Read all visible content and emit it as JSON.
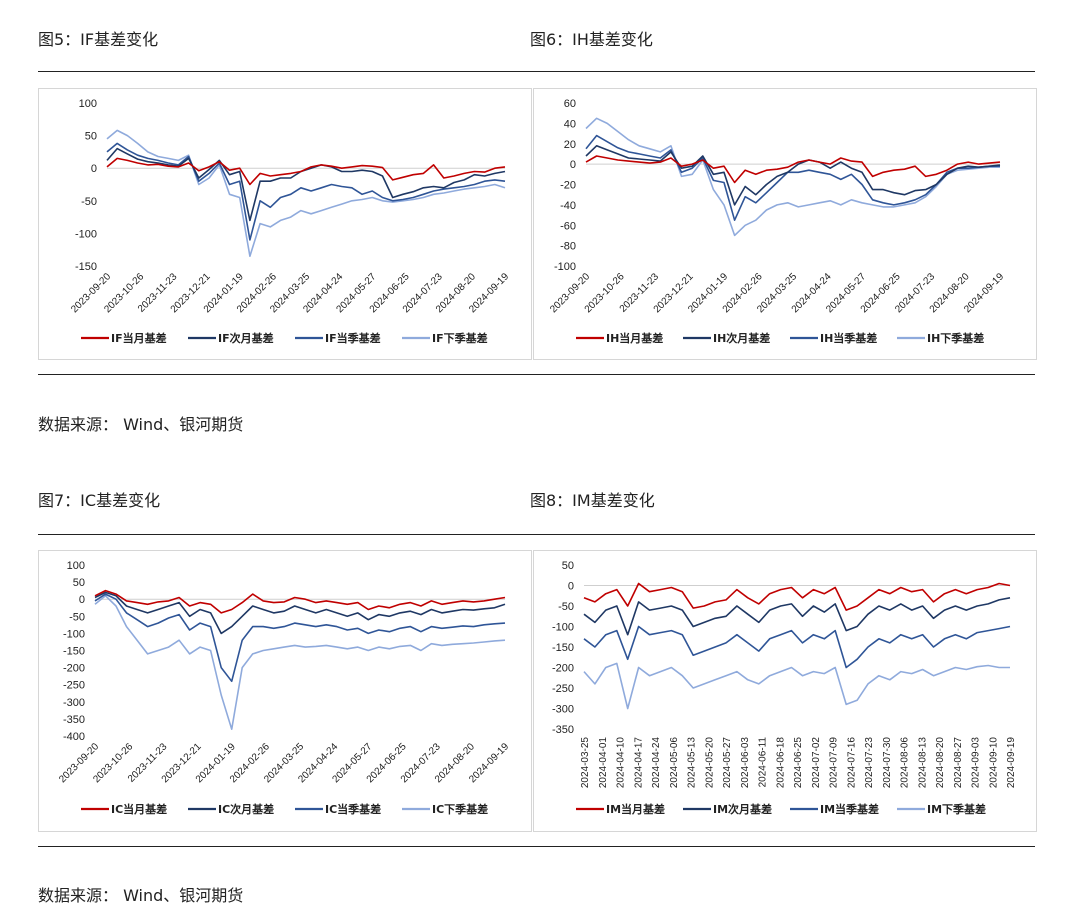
{
  "captions": {
    "fig5": "图5：IF基差变化",
    "fig6": "图6：IH基差变化",
    "fig7": "图7：IC基差变化",
    "fig8": "图8：IM基差变化"
  },
  "sources": {
    "top": "数据来源： Wind、银河期货",
    "bottom": "数据来源： Wind、银河期货"
  },
  "colors": {
    "current_month": "#c00000",
    "next_month": "#1f3864",
    "current_quarter": "#2f5597",
    "next_quarter": "#8faadc"
  },
  "chart_data": [
    {
      "id": "IF",
      "type": "line",
      "title": "",
      "ylim": [
        -150,
        100
      ],
      "yticks": [
        100,
        50,
        0,
        -50,
        -100,
        -150
      ],
      "xtick_labels": [
        "2023-09-20",
        "2023-10-26",
        "2023-11-23",
        "2023-12-21",
        "2024-01-19",
        "2024-02-26",
        "2024-03-25",
        "2024-04-24",
        "2024-05-27",
        "2024-06-25",
        "2024-07-23",
        "2024-08-20",
        "2024-09-19"
      ],
      "series": [
        {
          "name": "IF当月基差",
          "values": [
            2,
            15,
            12,
            8,
            5,
            6,
            3,
            2,
            8,
            -4,
            2,
            10,
            -3,
            0,
            -25,
            -8,
            -12,
            -10,
            -8,
            -5,
            2,
            5,
            3,
            0,
            2,
            4,
            3,
            1,
            -18,
            -14,
            -10,
            -8,
            5,
            -15,
            -12,
            -8,
            -5,
            -6,
            0,
            2
          ]
        },
        {
          "name": "IF次月基差",
          "values": [
            12,
            30,
            22,
            14,
            10,
            8,
            5,
            3,
            15,
            -15,
            -2,
            12,
            -10,
            -5,
            -80,
            -20,
            -20,
            -15,
            -15,
            -5,
            0,
            5,
            2,
            -5,
            -5,
            -3,
            -5,
            -12,
            -45,
            -40,
            -36,
            -30,
            -28,
            -30,
            -22,
            -18,
            -10,
            -12,
            -8,
            -5
          ]
        },
        {
          "name": "IF当季基差",
          "values": [
            25,
            38,
            28,
            20,
            15,
            12,
            8,
            5,
            18,
            -20,
            -8,
            8,
            -25,
            -20,
            -110,
            -50,
            -60,
            -45,
            -40,
            -30,
            -35,
            -30,
            -25,
            -28,
            -30,
            -40,
            -35,
            -45,
            -50,
            -48,
            -45,
            -40,
            -35,
            -32,
            -30,
            -28,
            -25,
            -20,
            -18,
            -20
          ]
        },
        {
          "name": "IF下季基差",
          "values": [
            45,
            58,
            50,
            38,
            25,
            18,
            15,
            12,
            20,
            -25,
            -15,
            5,
            -40,
            -45,
            -135,
            -85,
            -90,
            -80,
            -75,
            -65,
            -70,
            -65,
            -60,
            -55,
            -50,
            -48,
            -45,
            -50,
            -52,
            -50,
            -48,
            -45,
            -40,
            -38,
            -35,
            -32,
            -30,
            -28,
            -25,
            -30
          ]
        }
      ]
    },
    {
      "id": "IH",
      "type": "line",
      "title": "",
      "ylim": [
        -100,
        60
      ],
      "yticks": [
        60,
        40,
        20,
        0,
        -20,
        -40,
        -60,
        -80,
        -100
      ],
      "xtick_labels": [
        "2023-09-20",
        "2023-10-26",
        "2023-11-23",
        "2023-12-21",
        "2024-01-19",
        "2024-02-26",
        "2024-03-25",
        "2024-04-24",
        "2024-05-27",
        "2024-06-25",
        "2024-07-23",
        "2024-08-20",
        "2024-09-19"
      ],
      "series": [
        {
          "name": "IH当月基差",
          "values": [
            2,
            8,
            6,
            4,
            3,
            2,
            1,
            2,
            6,
            -2,
            0,
            4,
            -4,
            -2,
            -18,
            -6,
            -10,
            -6,
            -5,
            -3,
            2,
            4,
            2,
            0,
            6,
            3,
            2,
            -12,
            -8,
            -6,
            -5,
            -2,
            -12,
            -10,
            -6,
            0,
            2,
            0,
            1,
            2
          ]
        },
        {
          "name": "IH次月基差",
          "values": [
            8,
            18,
            14,
            10,
            6,
            5,
            4,
            3,
            12,
            -4,
            -2,
            8,
            -10,
            -8,
            -40,
            -22,
            -30,
            -20,
            -12,
            -8,
            0,
            4,
            2,
            -4,
            2,
            -4,
            -8,
            -25,
            -25,
            -28,
            -30,
            -26,
            -25,
            -20,
            -10,
            -4,
            -2,
            -3,
            -2,
            -1
          ]
        },
        {
          "name": "IH当季基差",
          "values": [
            15,
            28,
            22,
            16,
            12,
            10,
            8,
            6,
            14,
            -8,
            -4,
            6,
            -16,
            -18,
            -55,
            -32,
            -38,
            -28,
            -18,
            -8,
            -8,
            -6,
            -8,
            -10,
            -15,
            -10,
            -20,
            -35,
            -38,
            -40,
            -38,
            -35,
            -30,
            -20,
            -8,
            -4,
            -4,
            -3,
            -2,
            -2
          ]
        },
        {
          "name": "IH下季基差",
          "values": [
            35,
            45,
            40,
            32,
            24,
            18,
            15,
            12,
            18,
            -12,
            -10,
            4,
            -25,
            -40,
            -70,
            -60,
            -55,
            -45,
            -40,
            -38,
            -42,
            -40,
            -38,
            -36,
            -40,
            -35,
            -38,
            -40,
            -42,
            -42,
            -40,
            -38,
            -32,
            -22,
            -10,
            -6,
            -5,
            -4,
            -3,
            -3
          ]
        }
      ]
    },
    {
      "id": "IC",
      "type": "line",
      "title": "",
      "ylim": [
        -400,
        100
      ],
      "yticks": [
        100,
        50,
        0,
        -50,
        -100,
        -150,
        -200,
        -250,
        -300,
        -350,
        -400
      ],
      "xtick_labels": [
        "2023-09-20",
        "2023-10-26",
        "2023-11-23",
        "2023-12-21",
        "2024-01-19",
        "2024-02-26",
        "2024-03-25",
        "2024-04-24",
        "2024-05-27",
        "2024-06-25",
        "2024-07-23",
        "2024-08-20",
        "2024-09-19"
      ],
      "series": [
        {
          "name": "IC当月基差",
          "values": [
            10,
            25,
            15,
            -5,
            -10,
            -15,
            -8,
            -5,
            5,
            -20,
            -10,
            -15,
            -40,
            -30,
            -10,
            15,
            -5,
            -10,
            -8,
            5,
            0,
            -10,
            -5,
            -10,
            -15,
            -10,
            -30,
            -20,
            -25,
            -15,
            -10,
            -20,
            -5,
            -15,
            -10,
            -5,
            -8,
            -5,
            0,
            5
          ]
        },
        {
          "name": "IC次月基差",
          "values": [
            5,
            20,
            10,
            -20,
            -30,
            -40,
            -30,
            -20,
            -10,
            -50,
            -30,
            -40,
            -100,
            -80,
            -50,
            -20,
            -30,
            -40,
            -35,
            -20,
            -30,
            -40,
            -30,
            -40,
            -50,
            -40,
            -60,
            -45,
            -50,
            -40,
            -35,
            -45,
            -30,
            -40,
            -35,
            -30,
            -32,
            -28,
            -25,
            -15
          ]
        },
        {
          "name": "IC当季基差",
          "values": [
            -5,
            15,
            0,
            -40,
            -60,
            -80,
            -70,
            -55,
            -45,
            -90,
            -70,
            -80,
            -200,
            -240,
            -120,
            -80,
            -80,
            -85,
            -80,
            -70,
            -75,
            -80,
            -75,
            -80,
            -90,
            -85,
            -100,
            -90,
            -95,
            -85,
            -80,
            -95,
            -80,
            -85,
            -82,
            -78,
            -80,
            -75,
            -72,
            -70
          ]
        },
        {
          "name": "IC下季基差",
          "values": [
            -15,
            10,
            -20,
            -80,
            -120,
            -160,
            -150,
            -140,
            -120,
            -160,
            -140,
            -150,
            -280,
            -380,
            -200,
            -160,
            -150,
            -145,
            -140,
            -135,
            -140,
            -138,
            -135,
            -140,
            -145,
            -140,
            -150,
            -140,
            -145,
            -138,
            -135,
            -150,
            -130,
            -135,
            -132,
            -130,
            -128,
            -125,
            -122,
            -120
          ]
        }
      ]
    },
    {
      "id": "IM",
      "type": "line",
      "title": "",
      "ylim": [
        -350,
        50
      ],
      "yticks": [
        50,
        0,
        -50,
        -100,
        -150,
        -200,
        -250,
        -300,
        -350
      ],
      "xtick_labels": [
        "2024-03-25",
        "2024-04-01",
        "2024-04-10",
        "2024-04-17",
        "2024-04-24",
        "2024-05-06",
        "2024-05-13",
        "2024-05-20",
        "2024-05-27",
        "2024-06-03",
        "2024-06-11",
        "2024-06-18",
        "2024-06-25",
        "2024-07-02",
        "2024-07-09",
        "2024-07-16",
        "2024-07-23",
        "2024-07-30",
        "2024-08-06",
        "2024-08-13",
        "2024-08-20",
        "2024-08-27",
        "2024-09-03",
        "2024-09-10",
        "2024-09-19"
      ],
      "series": [
        {
          "name": "IM当月基差",
          "values": [
            -30,
            -40,
            -20,
            -10,
            -50,
            5,
            -15,
            -10,
            -5,
            -15,
            -55,
            -50,
            -40,
            -35,
            -10,
            -30,
            -45,
            -20,
            -10,
            -5,
            -30,
            -10,
            -20,
            -5,
            -60,
            -50,
            -30,
            -10,
            -20,
            -5,
            -15,
            -10,
            -40,
            -20,
            -10,
            -20,
            -10,
            -5,
            5,
            0
          ]
        },
        {
          "name": "IM次月基差",
          "values": [
            -70,
            -90,
            -60,
            -50,
            -120,
            -40,
            -60,
            -55,
            -50,
            -60,
            -100,
            -90,
            -80,
            -75,
            -50,
            -70,
            -90,
            -60,
            -50,
            -45,
            -75,
            -50,
            -65,
            -45,
            -110,
            -100,
            -70,
            -50,
            -60,
            -45,
            -60,
            -50,
            -80,
            -60,
            -50,
            -60,
            -50,
            -45,
            -35,
            -30
          ]
        },
        {
          "name": "IM当季基差",
          "values": [
            -130,
            -150,
            -120,
            -110,
            -180,
            -100,
            -120,
            -115,
            -110,
            -120,
            -170,
            -160,
            -150,
            -140,
            -120,
            -140,
            -160,
            -130,
            -120,
            -110,
            -140,
            -120,
            -130,
            -110,
            -200,
            -180,
            -150,
            -130,
            -140,
            -120,
            -130,
            -120,
            -150,
            -130,
            -120,
            -130,
            -115,
            -110,
            -105,
            -100
          ]
        },
        {
          "name": "IM下季基差",
          "values": [
            -210,
            -240,
            -200,
            -190,
            -300,
            -200,
            -220,
            -210,
            -200,
            -220,
            -250,
            -240,
            -230,
            -220,
            -210,
            -230,
            -240,
            -220,
            -210,
            -200,
            -220,
            -210,
            -215,
            -200,
            -290,
            -280,
            -240,
            -220,
            -230,
            -210,
            -215,
            -205,
            -220,
            -210,
            -200,
            -205,
            -198,
            -195,
            -200,
            -200
          ]
        }
      ]
    }
  ]
}
